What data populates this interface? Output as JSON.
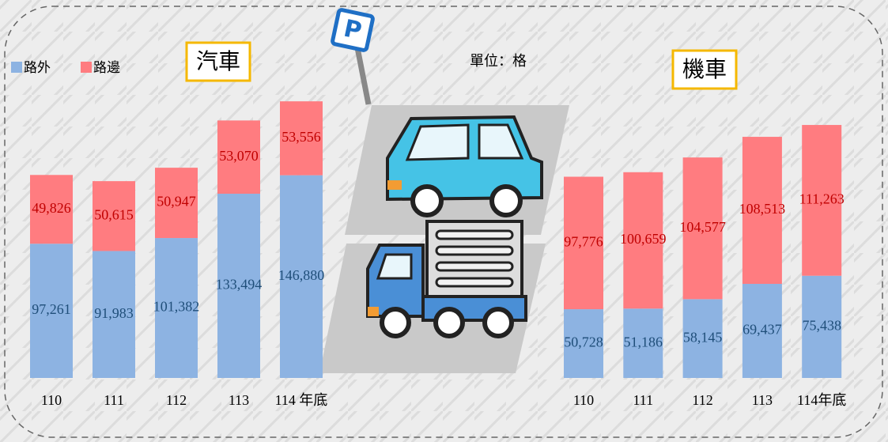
{
  "unit_label": "單位：格",
  "chart_data": [
    {
      "type": "stacked_bar",
      "title": "汽車",
      "categories": [
        "110",
        "111",
        "112",
        "113",
        "114 年底"
      ],
      "series": [
        {
          "name": "路外",
          "color": "#8db3e2",
          "label_color": "#1f4e79",
          "values": [
            97261,
            91983,
            101382,
            133494,
            146880
          ],
          "value_labels": [
            "97,261",
            "91,983",
            "101,382",
            "133,494",
            "146,880"
          ]
        },
        {
          "name": "路邊",
          "color": "#ff7c80",
          "label_color": "#c00000",
          "values": [
            49826,
            50615,
            50947,
            53070,
            53556
          ],
          "value_labels": [
            "49,826",
            "50,615",
            "50,947",
            "53,070",
            "53,556"
          ]
        }
      ],
      "ylim": [
        0,
        220000
      ]
    },
    {
      "type": "stacked_bar",
      "title": "機車",
      "categories": [
        "110",
        "111",
        "112",
        "113",
        "114年底"
      ],
      "series": [
        {
          "name": "路外",
          "color": "#8db3e2",
          "label_color": "#1f4e79",
          "values": [
            50728,
            51186,
            58145,
            69437,
            75438
          ],
          "value_labels": [
            "50,728",
            "51,186",
            "58,145",
            "69,437",
            "75,438"
          ]
        },
        {
          "name": "路邊",
          "color": "#ff7c80",
          "label_color": "#c00000",
          "values": [
            97776,
            100659,
            104577,
            108513,
            111263
          ],
          "value_labels": [
            "97,776",
            "100,659",
            "104,577",
            "108,513",
            "111,263"
          ]
        }
      ],
      "ylim": [
        0,
        220000
      ]
    }
  ]
}
